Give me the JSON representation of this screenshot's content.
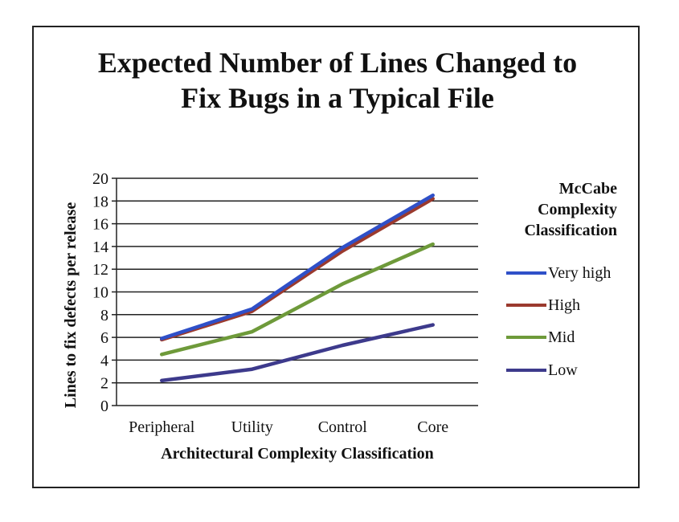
{
  "chart_data": {
    "type": "line",
    "title": "Expected Number of Lines Changed to Fix Bugs in a Typical File",
    "xlabel": "Architectural Complexity Classification",
    "ylabel": "Lines to fix defects per release",
    "categories": [
      "Peripheral",
      "Utility",
      "Control",
      "Core"
    ],
    "ylim": [
      0,
      20
    ],
    "yticks": [
      0,
      2,
      4,
      6,
      8,
      10,
      12,
      14,
      16,
      18,
      20
    ],
    "grid": true,
    "legend_title": "McCabe Complexity Classification",
    "legend_position": "right",
    "series": [
      {
        "name": "Very high",
        "values": [
          5.9,
          8.5,
          13.9,
          18.5
        ],
        "color": "#2f50c8"
      },
      {
        "name": "High",
        "values": [
          5.8,
          8.3,
          13.6,
          18.2
        ],
        "color": "#9b3a2e"
      },
      {
        "name": "Mid",
        "values": [
          4.5,
          6.5,
          10.7,
          14.2
        ],
        "color": "#6e9a3a"
      },
      {
        "name": "Low",
        "values": [
          2.2,
          3.2,
          5.3,
          7.1
        ],
        "color": "#3d3a8c"
      }
    ]
  }
}
